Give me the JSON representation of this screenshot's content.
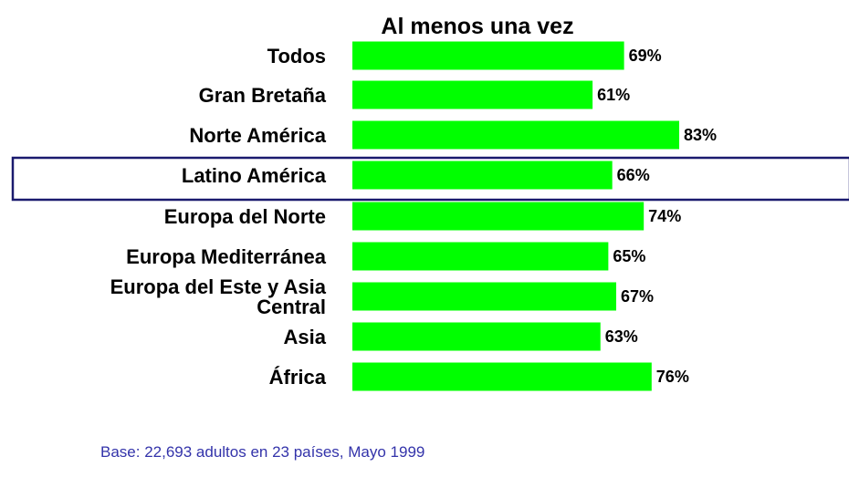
{
  "chart_data": {
    "type": "bar",
    "orientation": "horizontal",
    "title": "Al menos una vez",
    "categories": [
      [
        "Todos"
      ],
      [
        "Gran Bretaña"
      ],
      [
        "Norte América"
      ],
      [
        "Latino América"
      ],
      [
        "Europa del Norte"
      ],
      [
        "Europa Mediterránea"
      ],
      [
        "Europa del Este y Asia",
        "Central"
      ],
      [
        "Asia"
      ],
      [
        "África"
      ]
    ],
    "values": [
      69,
      61,
      83,
      66,
      74,
      65,
      67,
      63,
      76
    ],
    "value_labels": [
      "69%",
      "61%",
      "83%",
      "66%",
      "74%",
      "65%",
      "67%",
      "63%",
      "76%"
    ],
    "highlighted_category_index": 3,
    "bar_color": "#00ff00",
    "highlight_box_color": "#1a1a6e",
    "grid": false,
    "legend": "none"
  },
  "footnote": "Base:  22,693 adultos en 23 países, Mayo 1999",
  "footnote_color": "#3333aa"
}
